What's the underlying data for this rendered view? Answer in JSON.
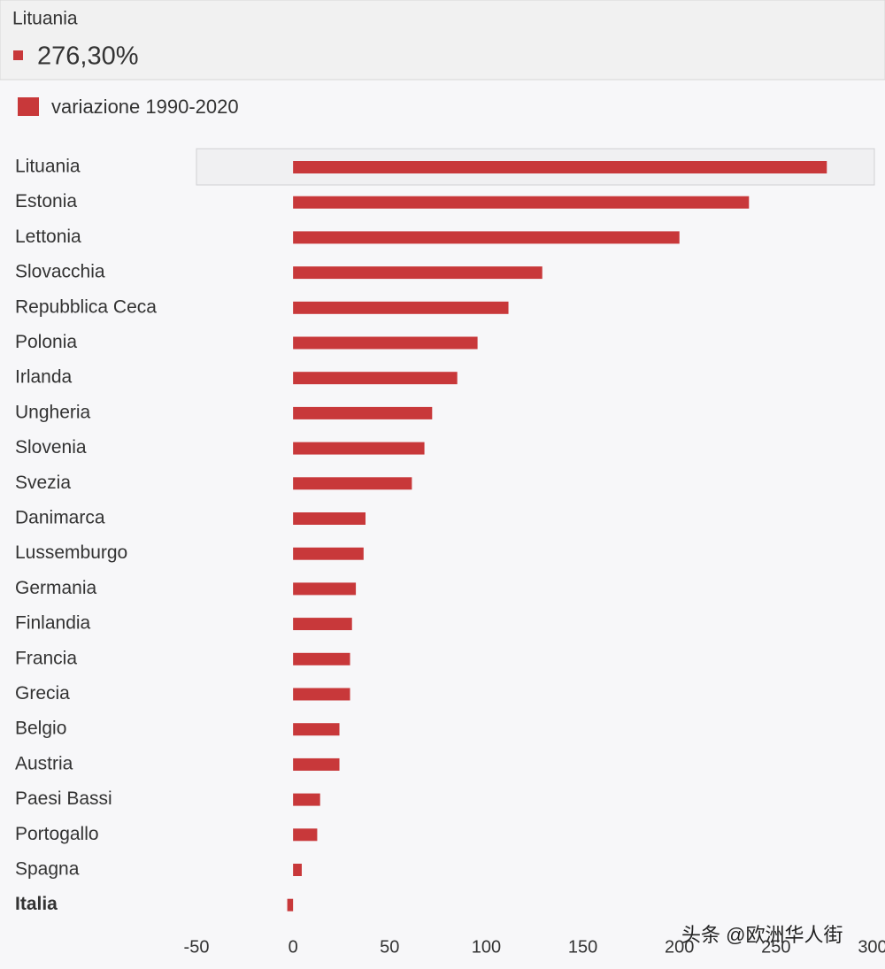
{
  "chart_data": {
    "type": "bar",
    "orientation": "horizontal",
    "tooltip": {
      "label": "Lituania",
      "value": "276,30%"
    },
    "legend": "top-left",
    "categories": [
      "Lituania",
      "Estonia",
      "Lettonia",
      "Slovacchia",
      "Repubblica Ceca",
      "Polonia",
      "Irlanda",
      "Ungheria",
      "Slovenia",
      "Svezia",
      "Danimarca",
      "Lussemburgo",
      "Germania",
      "Finlandia",
      "Francia",
      "Grecia",
      "Belgio",
      "Austria",
      "Paesi Bassi",
      "Portogallo",
      "Spagna",
      "Italia"
    ],
    "series": [
      {
        "name": "variazione 1990-2020",
        "color": "#c8383a",
        "values": [
          276.3,
          236,
          200,
          129,
          111.5,
          95.5,
          85,
          72,
          68,
          61.5,
          37.5,
          36.5,
          32.5,
          30.5,
          29.5,
          29.5,
          24,
          24,
          14,
          12.5,
          4.5,
          -3
        ]
      }
    ],
    "xlim": [
      -50,
      300
    ],
    "xticks": [
      -50,
      0,
      50,
      100,
      150,
      200,
      250,
      300
    ],
    "watermark": "头条 @欧洲华人街"
  }
}
